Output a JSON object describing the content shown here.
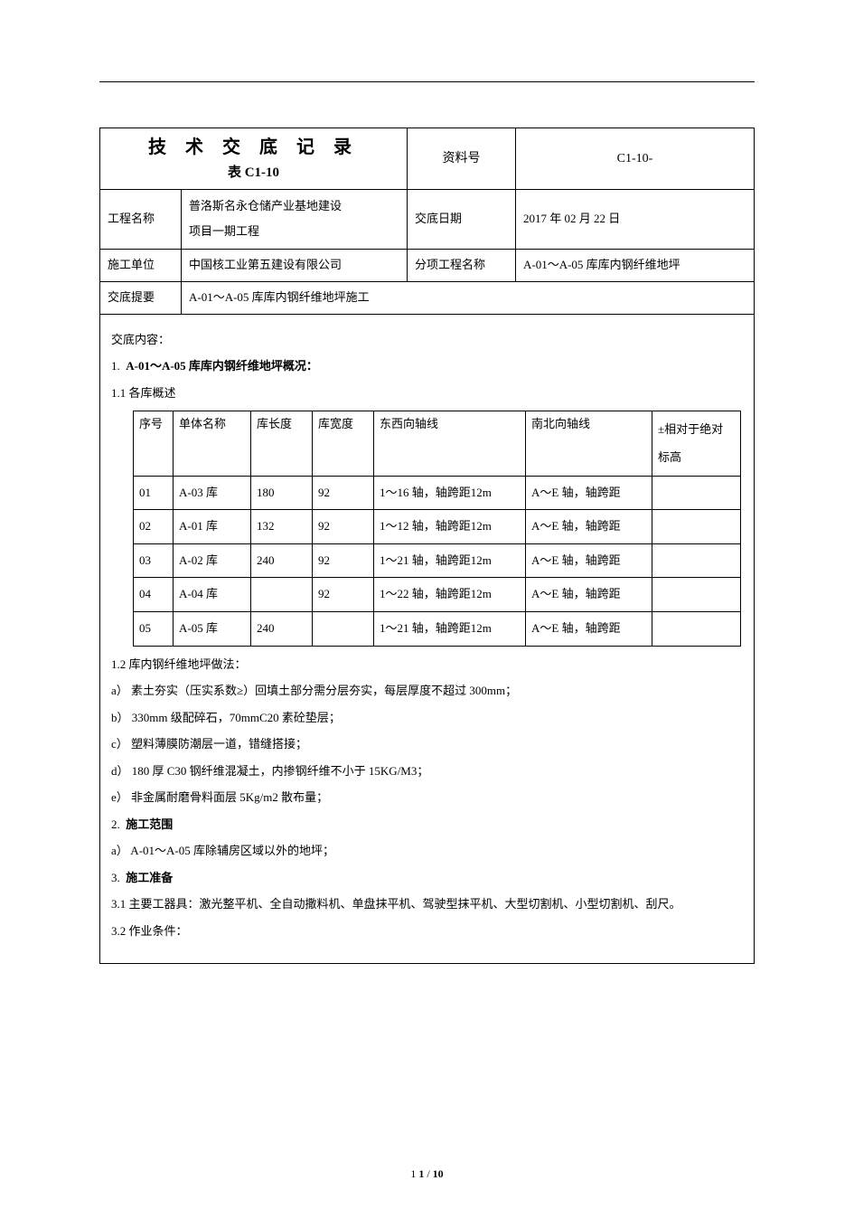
{
  "header": {
    "title_main": "技 术 交 底 记 录",
    "title_sub": "表 C1-10",
    "doc_no_label": "资料号",
    "doc_no_value": "C1-10-",
    "project_label": "工程名称",
    "project_value_line1": "普洛斯名永仓储产业基地建设",
    "project_value_line2": "项目一期工程",
    "date_label": "交底日期",
    "date_value": "2017 年 02 月 22 日",
    "contractor_label": "施工单位",
    "contractor_value": "中国核工业第五建设有限公司",
    "subitem_label": "分项工程名称",
    "subitem_value": "A-01～A-05 库库内钢纤维地坪",
    "summary_label": "交底提要",
    "summary_value": "A-01～A-05 库库内钢纤维地坪施工"
  },
  "body": {
    "content_label": "交底内容：",
    "sec1_title": "A-01～A-05 库库内钢纤维地坪概况：",
    "sec1_num": "1.",
    "sec1_1_title": "1.1 各库概述",
    "table_headers": {
      "no": "序号",
      "name": "单体名称",
      "len": "库长度",
      "wid": "库宽度",
      "ew": "东西向轴线",
      "ns": "南北向轴线",
      "elev": "±相对于绝对标高"
    },
    "rows": [
      {
        "no": "01",
        "name": "A-03 库",
        "len": "180",
        "wid": "92",
        "ew": "1～16 轴，轴跨距12m",
        "ns": "A～E 轴，轴跨距",
        "elev": ""
      },
      {
        "no": "02",
        "name": "A-01 库",
        "len": "132",
        "wid": "92",
        "ew": "1～12 轴，轴跨距12m",
        "ns": "A～E 轴，轴跨距",
        "elev": ""
      },
      {
        "no": "03",
        "name": "A-02 库",
        "len": "240",
        "wid": "92",
        "ew": "1～21 轴，轴跨距12m",
        "ns": "A～E 轴，轴跨距",
        "elev": ""
      },
      {
        "no": "04",
        "name": "A-04 库",
        "len": "",
        "wid": "92",
        "ew": "1～22 轴，轴跨距12m",
        "ns": "A～E 轴，轴跨距",
        "elev": ""
      },
      {
        "no": "05",
        "name": "A-05 库",
        "len": "240",
        "wid": "",
        "ew": "1～21 轴，轴跨距12m",
        "ns": "A～E 轴，轴跨距",
        "elev": ""
      }
    ],
    "sec1_2_title": "1.2 库内钢纤维地坪做法：",
    "item_a": "a）  素土夯实（压实系数≥）回填土部分需分层夯实，每层厚度不超过 300mm；",
    "item_b": "b）  330mm 级配碎石，70mmC20 素砼垫层；",
    "item_c": "c）  塑料薄膜防潮层一道，错缝搭接；",
    "item_d": "d）  180 厚 C30 钢纤维混凝土，内掺钢纤维不小于 15KG/M3；",
    "item_e": "e）  非金属耐磨骨料面层 5Kg/m2 散布量；",
    "sec2_num": "2.",
    "sec2_title": "施工范围",
    "sec2_a": "a）  A-01～A-05 库除辅房区域以外的地坪；",
    "sec3_num": "3.",
    "sec3_title": "施工准备",
    "sec3_1": "3.1 主要工器具：激光整平机、全自动撒料机、单盘抹平机、驾驶型抹平机、大型切割机、小型切割机、刮尺。",
    "sec3_2": "3.2 作业条件："
  },
  "footer": {
    "page_cur": "1",
    "page_bold": "1",
    "page_total": "10"
  }
}
